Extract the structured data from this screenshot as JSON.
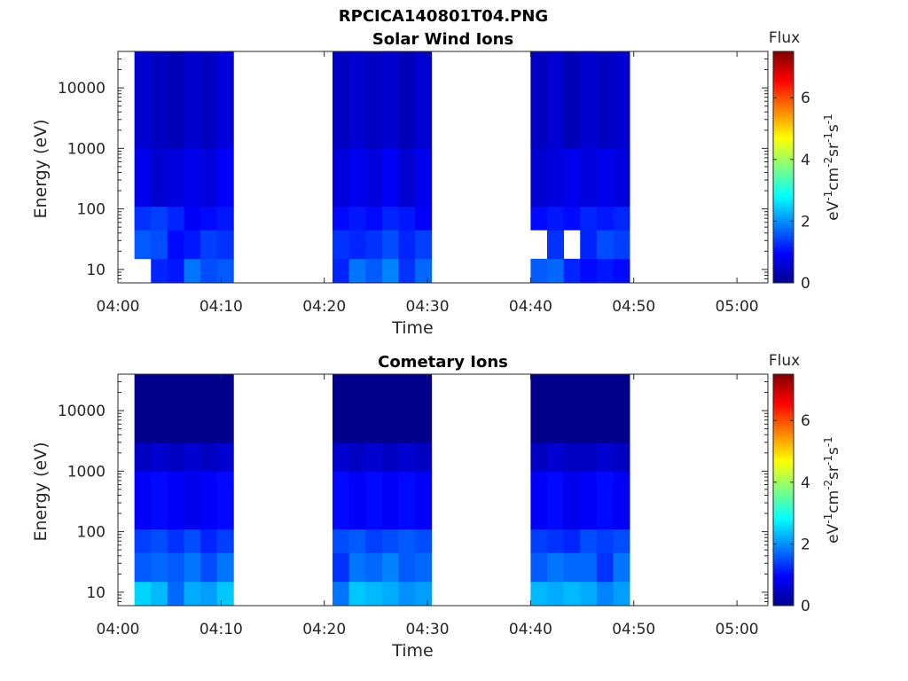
{
  "figure_title": "RPCICA140801T04.PNG",
  "chart_data": [
    {
      "type": "heatmap",
      "title": "Solar Wind Ions",
      "xlabel": "Time",
      "ylabel": "Energy (eV)",
      "x_ticks": [
        "04:00",
        "04:10",
        "04:20",
        "04:30",
        "04:40",
        "04:50",
        "05:00"
      ],
      "xlim_minutes_after_0400": [
        0,
        63
      ],
      "y_scale": "log",
      "y_ticks": [
        "10",
        "100",
        "1000",
        "10000"
      ],
      "ylim": [
        6,
        40000
      ],
      "colorbar": {
        "label": "Flux",
        "units": "eV-1cm-2sr-1s-1",
        "ticks": [
          "0",
          "2",
          "4",
          "6"
        ],
        "range": [
          0,
          7.5
        ],
        "colormap": "jet"
      },
      "data_blocks": [
        {
          "start": "04:01:36",
          "end": "04:11:12",
          "columns": 6,
          "flux_by_energy_band": [
            {
              "band": "6-15 eV",
              "flux": [
                null,
                1.2,
                1.1,
                1.8,
                1.5,
                1.6
              ]
            },
            {
              "band": "15-45 eV",
              "flux": [
                1.6,
                1.5,
                1.0,
                1.1,
                1.4,
                1.3
              ]
            },
            {
              "band": "45-110 eV",
              "flux": [
                1.3,
                1.4,
                1.2,
                0.9,
                1.0,
                1.1
              ]
            },
            {
              "band": "110-1000 eV",
              "flux": [
                0.8,
                0.6,
                0.7,
                0.8,
                0.7,
                0.9
              ]
            },
            {
              "band": "1000-40000 eV",
              "flux": [
                0.6,
                0.5,
                0.4,
                0.6,
                0.5,
                0.7
              ]
            }
          ]
        },
        {
          "start": "04:20:48",
          "end": "04:30:24",
          "columns": 6,
          "flux_by_energy_band": [
            {
              "band": "6-15 eV",
              "flux": [
                1.2,
                1.8,
                1.6,
                1.9,
                1.3,
                1.7
              ]
            },
            {
              "band": "15-45 eV",
              "flux": [
                1.3,
                1.2,
                1.3,
                1.5,
                1.2,
                1.4
              ]
            },
            {
              "band": "45-110 eV",
              "flux": [
                1.0,
                1.1,
                1.0,
                1.2,
                1.1,
                0.9
              ]
            },
            {
              "band": "110-1000 eV",
              "flux": [
                0.7,
                0.8,
                0.7,
                0.9,
                0.6,
                0.8
              ]
            },
            {
              "band": "1000-40000 eV",
              "flux": [
                0.5,
                0.6,
                0.5,
                0.6,
                0.4,
                0.6
              ]
            }
          ]
        },
        {
          "start": "04:40:00",
          "end": "04:49:36",
          "columns": 6,
          "flux_by_energy_band": [
            {
              "band": "6-15 eV",
              "flux": [
                1.6,
                1.7,
                1.2,
                1.0,
                1.1,
                1.0
              ]
            },
            {
              "band": "15-45 eV",
              "flux": [
                null,
                1.3,
                null,
                1.2,
                1.5,
                1.4
              ]
            },
            {
              "band": "45-110 eV",
              "flux": [
                1.0,
                1.1,
                1.0,
                1.2,
                1.1,
                1.2
              ]
            },
            {
              "band": "110-1000 eV",
              "flux": [
                0.6,
                0.7,
                0.8,
                0.7,
                0.8,
                0.7
              ]
            },
            {
              "band": "1000-40000 eV",
              "flux": [
                0.5,
                0.6,
                0.4,
                0.6,
                0.5,
                0.6
              ]
            }
          ]
        }
      ]
    },
    {
      "type": "heatmap",
      "title": "Cometary Ions",
      "xlabel": "Time",
      "ylabel": "Energy (eV)",
      "x_ticks": [
        "04:00",
        "04:10",
        "04:20",
        "04:30",
        "04:40",
        "04:50",
        "05:00"
      ],
      "xlim_minutes_after_0400": [
        0,
        63
      ],
      "y_scale": "log",
      "y_ticks": [
        "10",
        "100",
        "1000",
        "10000"
      ],
      "ylim": [
        6,
        40000
      ],
      "colorbar": {
        "label": "Flux",
        "units": "eV-1cm-2sr-1s-1",
        "ticks": [
          "0",
          "2",
          "4",
          "6"
        ],
        "range": [
          0,
          7.5
        ],
        "colormap": "jet"
      },
      "data_blocks": [
        {
          "start": "04:01:36",
          "end": "04:11:12",
          "columns": 6,
          "flux_by_energy_band": [
            {
              "band": "6-15 eV",
              "flux": [
                2.5,
                2.3,
                1.7,
                2.2,
                2.1,
                2.4
              ]
            },
            {
              "band": "15-45 eV",
              "flux": [
                1.6,
                1.7,
                1.6,
                1.8,
                1.5,
                1.8
              ]
            },
            {
              "band": "45-110 eV",
              "flux": [
                1.4,
                1.5,
                1.3,
                1.5,
                1.2,
                1.4
              ]
            },
            {
              "band": "110-1000 eV",
              "flux": [
                0.9,
                1.0,
                0.9,
                0.8,
                0.9,
                1.0
              ]
            },
            {
              "band": "1000-3000 eV",
              "flux": [
                0.5,
                0.6,
                0.5,
                0.6,
                0.5,
                0.6
              ]
            },
            {
              "band": "3000-40000 eV",
              "flux": [
                0.1,
                0.1,
                0.1,
                0.1,
                0.1,
                0.1
              ]
            }
          ]
        },
        {
          "start": "04:20:48",
          "end": "04:30:24",
          "columns": 6,
          "flux_by_energy_band": [
            {
              "band": "6-15 eV",
              "flux": [
                1.8,
                2.4,
                2.3,
                2.2,
                2.0,
                2.1
              ]
            },
            {
              "band": "15-45 eV",
              "flux": [
                1.3,
                1.8,
                1.7,
                1.9,
                1.6,
                1.7
              ]
            },
            {
              "band": "45-110 eV",
              "flux": [
                1.5,
                1.6,
                1.4,
                1.5,
                1.6,
                1.5
              ]
            },
            {
              "band": "110-1000 eV",
              "flux": [
                1.0,
                0.9,
                1.0,
                0.9,
                1.0,
                0.9
              ]
            },
            {
              "band": "1000-3000 eV",
              "flux": [
                0.6,
                0.5,
                0.6,
                0.5,
                0.6,
                0.5
              ]
            },
            {
              "band": "3000-40000 eV",
              "flux": [
                0.1,
                0.1,
                0.1,
                0.1,
                0.1,
                0.1
              ]
            }
          ]
        },
        {
          "start": "04:40:00",
          "end": "04:49:36",
          "columns": 6,
          "flux_by_energy_band": [
            {
              "band": "6-15 eV",
              "flux": [
                2.3,
                2.2,
                2.3,
                2.2,
                1.9,
                2.1
              ]
            },
            {
              "band": "15-45 eV",
              "flux": [
                1.6,
                1.8,
                1.7,
                1.7,
                1.3,
                1.8
              ]
            },
            {
              "band": "45-110 eV",
              "flux": [
                1.4,
                1.3,
                1.2,
                1.5,
                1.4,
                1.5
              ]
            },
            {
              "band": "110-1000 eV",
              "flux": [
                0.9,
                1.0,
                0.8,
                0.9,
                1.0,
                0.9
              ]
            },
            {
              "band": "1000-3000 eV",
              "flux": [
                0.5,
                0.6,
                0.5,
                0.5,
                0.6,
                0.5
              ]
            },
            {
              "band": "3000-40000 eV",
              "flux": [
                0.1,
                0.1,
                0.1,
                0.1,
                0.1,
                0.1
              ]
            }
          ]
        }
      ]
    }
  ]
}
